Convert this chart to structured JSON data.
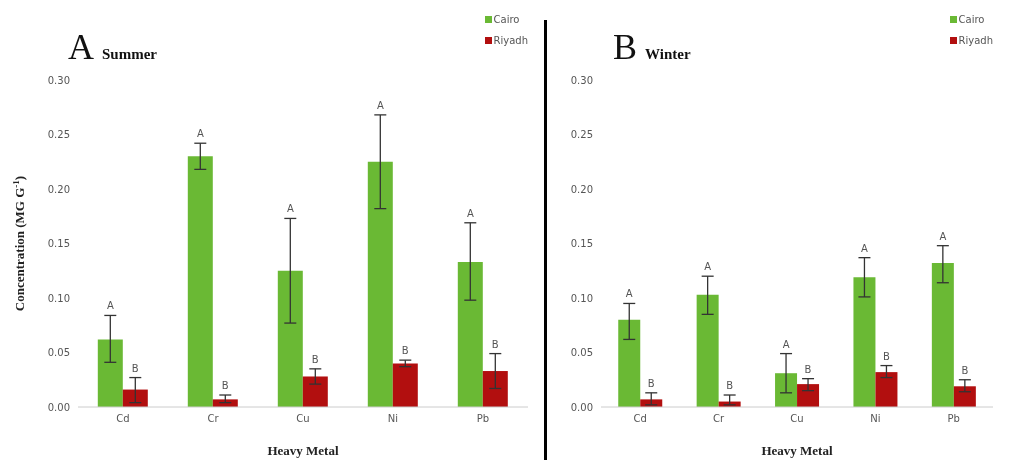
{
  "chart_data": [
    {
      "type": "bar",
      "title": "A Summer",
      "xlabel": "Heavy Metal",
      "ylabel": "Concentration (MG G$^{-1}$)",
      "categories": [
        "Cd",
        "Cr",
        "Cu",
        "Ni",
        "Pb"
      ],
      "series": [
        {
          "name": "Cairo",
          "color": "#6ab934",
          "values": [
            0.062,
            0.23,
            0.125,
            0.225,
            0.133
          ],
          "errors": [
            [
              0.041,
              0.084
            ],
            [
              0.218,
              0.242
            ],
            [
              0.077,
              0.173
            ],
            [
              0.182,
              0.268
            ],
            [
              0.098,
              0.169
            ]
          ]
        },
        {
          "name": "Riyadh",
          "color": "#b20f0f",
          "values": [
            0.016,
            0.007,
            0.028,
            0.04,
            0.033
          ],
          "errors": [
            [
              0.004,
              0.027
            ],
            [
              0.004,
              0.011
            ],
            [
              0.021,
              0.035
            ],
            [
              0.037,
              0.043
            ],
            [
              0.017,
              0.049
            ]
          ]
        }
      ],
      "annotations": [
        "A",
        "B",
        "A",
        "B",
        "A",
        "B",
        "A",
        "B",
        "A",
        "B"
      ],
      "ylim": [
        0,
        0.3
      ],
      "yticks": [
        {
          "value": 0,
          "label": "0.00"
        },
        {
          "value": 0.05,
          "label": "0.05"
        },
        {
          "value": 0.1,
          "label": "0.10"
        },
        {
          "value": 0.15,
          "label": "0.15"
        },
        {
          "value": 0.2,
          "label": "0.20"
        },
        {
          "value": 0.25,
          "label": "0.25"
        },
        {
          "value": 0.3,
          "label": "0.30"
        }
      ],
      "legend": "top right"
    },
    {
      "type": "bar",
      "title": "B Winter",
      "xlabel": "Heavy Metal",
      "categories": [
        "Cd",
        "Cr",
        "Cu",
        "Ni",
        "Pb"
      ],
      "series": [
        {
          "name": "Cairo",
          "color": "#6ab934",
          "values": [
            0.08,
            0.103,
            0.031,
            0.119,
            0.132
          ],
          "errors": [
            [
              0.062,
              0.095
            ],
            [
              0.085,
              0.12
            ],
            [
              0.013,
              0.049
            ],
            [
              0.101,
              0.137
            ],
            [
              0.114,
              0.148
            ]
          ]
        },
        {
          "name": "Riyadh",
          "color": "#b20f0f",
          "values": [
            0.007,
            0.005,
            0.021,
            0.032,
            0.019
          ],
          "errors": [
            [
              0.002,
              0.013
            ],
            [
              0.002,
              0.011
            ],
            [
              0.015,
              0.026
            ],
            [
              0.027,
              0.038
            ],
            [
              0.014,
              0.025
            ]
          ]
        }
      ],
      "annotations": [
        "A",
        "B",
        "A",
        "B",
        "A",
        "B",
        "A",
        "B",
        "A",
        "B"
      ],
      "ylim": [
        0,
        0.3
      ],
      "yticks": [
        {
          "value": 0,
          "label": "0.00"
        },
        {
          "value": 0.05,
          "label": "0.05"
        },
        {
          "value": 0.1,
          "label": "0.10"
        },
        {
          "value": 0.15,
          "label": "0.15"
        },
        {
          "value": 0.2,
          "label": "0.20"
        },
        {
          "value": 0.25,
          "label": "0.25"
        },
        {
          "value": 0.3,
          "label": "0.30"
        }
      ],
      "legend": "top right"
    }
  ]
}
